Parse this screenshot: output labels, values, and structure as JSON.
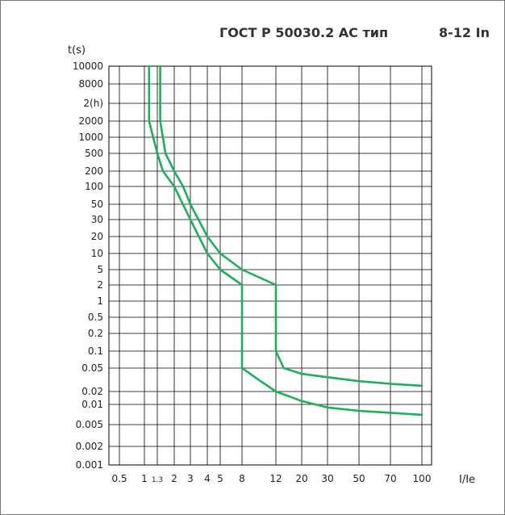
{
  "chart_data": {
    "type": "line",
    "title_main": "ГОСТ Р 50030.2 АС тип",
    "title_range": "8-12 In",
    "xlabel": "I/Ie",
    "ylabel": "t(s)",
    "xlim": [
      0,
      100
    ],
    "ylim": [
      0.001,
      10000
    ],
    "grid": true,
    "x_tick_labels": [
      "0.5",
      "1",
      "1.3",
      "2",
      "3",
      "4",
      "5",
      "8",
      "12",
      "20",
      "30",
      "50",
      "70",
      "100"
    ],
    "y_tick_labels": [
      "10000",
      "8000",
      "2(h)",
      "2000",
      "1000",
      "500",
      "200",
      "100",
      "50",
      "30",
      "20",
      "10",
      "5",
      "2",
      "1",
      "0.5",
      "0.2",
      "0.1",
      "0.05",
      "0.02",
      "0.01",
      "0.005",
      "0.002",
      "0.001"
    ],
    "series": [
      {
        "points": [
          [
            1.1,
            10000
          ],
          [
            1.1,
            2000
          ],
          [
            1.3,
            500
          ],
          [
            1.5,
            200
          ],
          [
            2,
            100
          ],
          [
            3,
            30
          ],
          [
            4,
            10
          ],
          [
            5,
            5
          ],
          [
            8,
            2
          ],
          [
            8,
            0.05
          ],
          [
            10,
            0.03
          ],
          [
            12,
            0.02
          ],
          [
            20,
            0.012
          ],
          [
            30,
            0.009
          ],
          [
            50,
            0.008
          ],
          [
            70,
            0.0075
          ],
          [
            100,
            0.007
          ]
        ]
      },
      {
        "points": [
          [
            1.4,
            10000
          ],
          [
            1.4,
            2000
          ],
          [
            1.6,
            500
          ],
          [
            2,
            200
          ],
          [
            2.5,
            100
          ],
          [
            3,
            50
          ],
          [
            4,
            20
          ],
          [
            5,
            10
          ],
          [
            8,
            5
          ],
          [
            12,
            2
          ],
          [
            12,
            0.1
          ],
          [
            14,
            0.05
          ],
          [
            20,
            0.04
          ],
          [
            30,
            0.035
          ],
          [
            50,
            0.03
          ],
          [
            70,
            0.027
          ],
          [
            100,
            0.025
          ]
        ]
      }
    ],
    "line_color": "#1db05a",
    "grid_color": "#000000"
  }
}
